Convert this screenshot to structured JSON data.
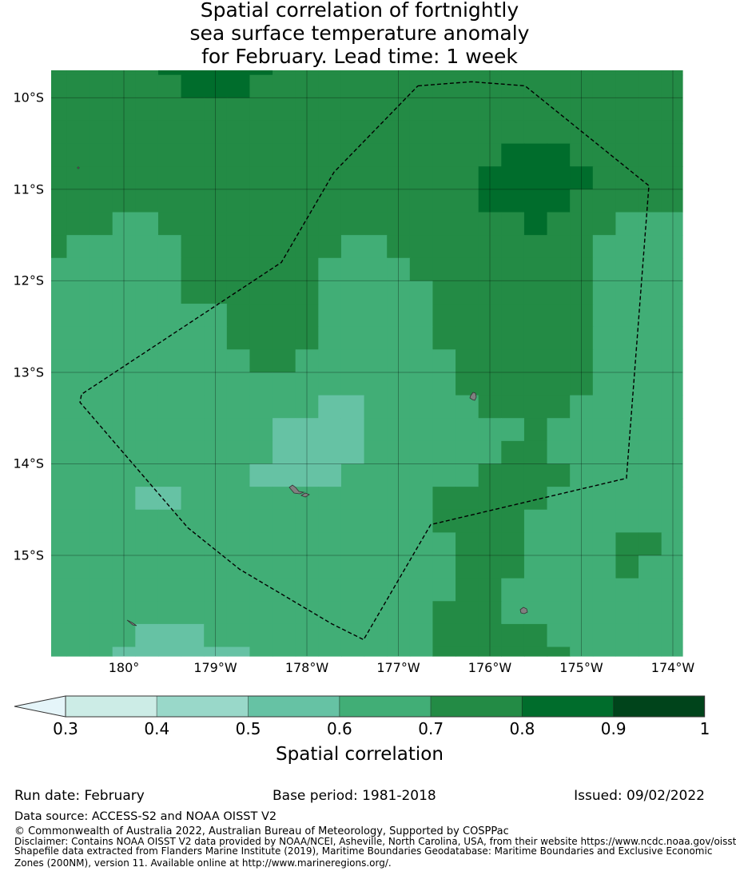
{
  "title_lines": [
    "Spatial correlation of fortnightly",
    "sea surface temperature anomaly",
    "for February. Lead time: 1 week"
  ],
  "chart_data": {
    "type": "heatmap",
    "title": "Spatial correlation of fortnightly sea surface temperature anomaly for February. Lead time: 1 week",
    "lon_range_deg_east": [
      179.205,
      186.105
    ],
    "lat_range": [
      -9.7,
      -16.1
    ],
    "grid_first_full_cell_edge": {
      "lon": 179.375,
      "lat": -9.75
    },
    "grid_cell_deg": 0.25,
    "class_note": "each digit is the colour-bar class index: 4=0.5-0.6, 5=0.6-0.7, 6=0.7-0.8, 7=0.8-0.9",
    "grid_rows": [
      "6666677777666666666666666666",
      "6666667776666666666666666666",
      "6666666666666666666666666666",
      "6666666666666666666666666666",
      "6666666666666666666677766666",
      "6666666666666666666777776666",
      "6666666666666666666777766666",
      "6665566666666666666667666555",
      "6555556666666556666666665555",
      "5555556666665555666666665555",
      "5555556666665555566666665555",
      "5555555566665555566666665555",
      "5555555566665555566666665555",
      "5555555556655555556666665555",
      "5555555555555555556666665555",
      "5555555555554455555666655555",
      "5555555555444455555556555555",
      "5555555555444455555566555555",
      "5555555554444555555666655555",
      "5555445555555555566666555555",
      "5555555555555555566665555555",
      "5555555555555555556665555665",
      "5555555555555555556665555655",
      "5555555555555555556655555555",
      "5555555555555555566655555555",
      "5555444555555555566666555555",
      "5554444445555555566666655555"
    ],
    "eez_boundary": [
      [
        183.214,
        -9.869
      ],
      [
        183.799,
        -9.825
      ],
      [
        184.384,
        -9.869
      ],
      [
        185.738,
        -10.961
      ],
      [
        185.493,
        -14.157
      ],
      [
        183.354,
        -14.664
      ],
      [
        182.62,
        -15.921
      ],
      [
        182.271,
        -15.747
      ],
      [
        181.266,
        -15.153
      ],
      [
        180.699,
        -14.699
      ],
      [
        179.52,
        -13.328
      ],
      [
        179.537,
        -13.24
      ],
      [
        181.721,
        -11.799
      ],
      [
        182.297,
        -10.812
      ],
      [
        183.214,
        -9.869
      ]
    ],
    "lon_ticks": [
      {
        "value": 180,
        "label": "180°"
      },
      {
        "value": 181,
        "label": "179°W"
      },
      {
        "value": 182,
        "label": "178°W"
      },
      {
        "value": 183,
        "label": "177°W"
      },
      {
        "value": 184,
        "label": "176°W"
      },
      {
        "value": 185,
        "label": "175°W"
      },
      {
        "value": 186,
        "label": "174°W"
      }
    ],
    "lat_ticks": [
      {
        "value": -10,
        "label": "10°S"
      },
      {
        "value": -11,
        "label": "11°S"
      },
      {
        "value": -12,
        "label": "12°S"
      },
      {
        "value": -13,
        "label": "13°S"
      },
      {
        "value": -14,
        "label": "14°S"
      },
      {
        "value": -15,
        "label": "15°S"
      }
    ],
    "colorbar": {
      "label": "Spatial correlation",
      "extend": "min",
      "extend_color": "#e5f5f9",
      "bounds": [
        0.3,
        0.4,
        0.5,
        0.6,
        0.7,
        0.8,
        0.9,
        1
      ],
      "tick_labels": [
        "0.3",
        "0.4",
        "0.5",
        "0.6",
        "0.7",
        "0.8",
        "0.9",
        "1"
      ],
      "colors": [
        "#ccece6",
        "#99d8c9",
        "#66c2a4",
        "#41ae76",
        "#238b45",
        "#006d2c",
        "#00441b"
      ]
    }
  },
  "footer": {
    "run_date": "Run date: February",
    "base_period": "Base period: 1981-2018",
    "issued": "Issued: 09/02/2022",
    "data_source": "Data source: ACCESS-S2 and NOAA OISST V2",
    "copyright": "© Commonwealth of Australia 2022, Australian Bureau of Meteorology, Supported by COSPPac",
    "disclaimer_lines": [
      "Disclaimer: Contains NOAA OISST V2 data provided by NOAA/NCEI, Asheville, North Carolina, USA, from their website https://www.ncdc.noaa.gov/oisst",
      "Shapefile data extracted from Flanders Marine Institute (2019), Maritime Boundaries Geodatabase: Maritime Boundaries and Exclusive Economic",
      "Zones (200NM), version 11. Available online at http://www.marineregions.org/."
    ]
  }
}
